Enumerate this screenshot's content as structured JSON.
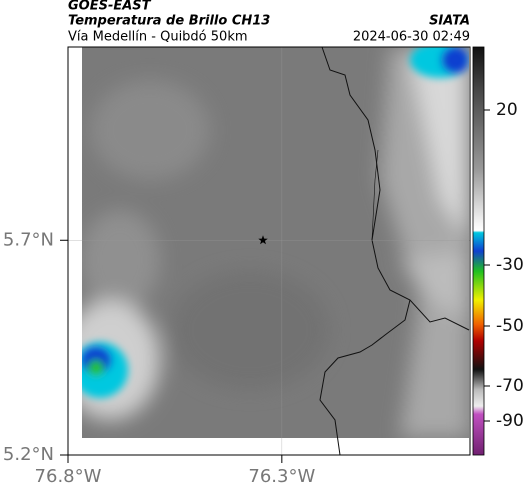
{
  "header": {
    "title": "GOES-EAST",
    "subtitle": "Temperatura de Brillo CH13",
    "source": "SIATA",
    "route": "Vía Medellín - Quibdó 50km",
    "timestamp": "2024-06-30 02:49"
  },
  "map": {
    "xlim": [
      -76.8,
      -75.86
    ],
    "ylim": [
      5.2,
      6.15
    ],
    "xticks": [
      {
        "value": -76.8,
        "label": "76.8°W"
      },
      {
        "value": -76.3,
        "label": "76.3°W"
      }
    ],
    "yticks": [
      {
        "value": 5.7,
        "label": "5.7°N"
      },
      {
        "value": 5.2,
        "label": "5.2°N"
      }
    ],
    "grid": true,
    "marker": {
      "lon": -76.344,
      "lat": 5.7
    }
  },
  "colorbar": {
    "ticks": [
      20,
      -30,
      -50,
      -70,
      -90
    ]
  }
}
